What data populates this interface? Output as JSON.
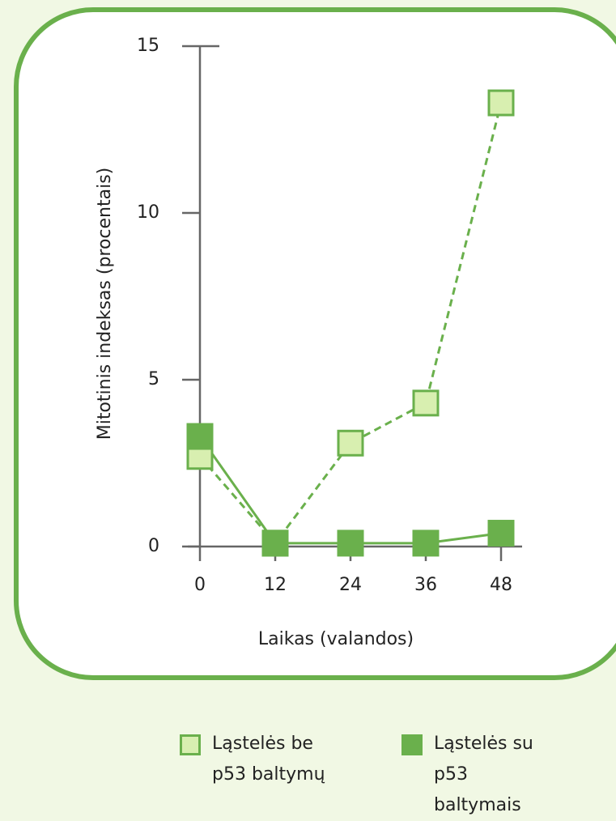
{
  "chart_data": {
    "type": "line",
    "x_label": "Laikas (valandos)",
    "y_label": "Mitotinis indeksas (procentais)",
    "x": [
      0,
      12,
      24,
      36,
      48
    ],
    "xlim": [
      0,
      48
    ],
    "xticks": [
      0,
      12,
      24,
      36,
      48
    ],
    "ylim": [
      0,
      15
    ],
    "yticks": [
      0,
      5,
      10,
      15
    ],
    "series": [
      {
        "name": "Ląstelės be p53 baltymų",
        "color": "#d8efb0",
        "values": [
          2.7,
          0.1,
          3.1,
          4.3,
          13.3
        ],
        "dashed": true
      },
      {
        "name": "Ląstelės su p53 baltymais",
        "color": "#6ab04c",
        "values": [
          3.3,
          0.1,
          0.1,
          0.1,
          0.4
        ],
        "dashed": false
      }
    ]
  }
}
